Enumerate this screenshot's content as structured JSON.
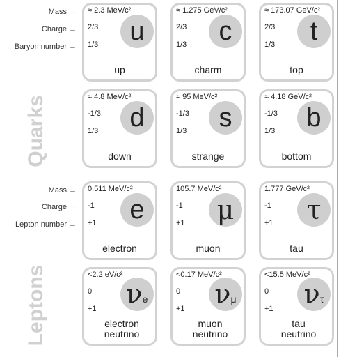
{
  "quark_row_labels": {
    "mass": "Mass",
    "charge": "Charge",
    "number": "Baryon number"
  },
  "lepton_row_labels": {
    "mass": "Mass",
    "charge": "Charge",
    "number": "Lepton number"
  },
  "arrow": "→",
  "groups": {
    "quarks": "Quarks",
    "leptons": "Leptons"
  },
  "quarks": [
    {
      "mass": "≈ 2.3 MeV/c²",
      "charge": "2/3",
      "number": "1/3",
      "symbol": "u",
      "name": "up"
    },
    {
      "mass": "≈ 1.275 GeV/c²",
      "charge": "2/3",
      "number": "1/3",
      "symbol": "c",
      "name": "charm"
    },
    {
      "mass": "≈ 173.07 GeV/c²",
      "charge": "2/3",
      "number": "1/3",
      "symbol": "t",
      "name": "top"
    },
    {
      "mass": "≈ 4.8 MeV/c²",
      "charge": "-1/3",
      "number": "1/3",
      "symbol": "d",
      "name": "down"
    },
    {
      "mass": "≈ 95 MeV/c²",
      "charge": "-1/3",
      "number": "1/3",
      "symbol": "s",
      "name": "strange"
    },
    {
      "mass": "≈ 4.18 GeV/c²",
      "charge": "-1/3",
      "number": "1/3",
      "symbol": "b",
      "name": "bottom"
    }
  ],
  "leptons": [
    {
      "mass": "0.511 MeV/c²",
      "charge": "-1",
      "number": "+1",
      "symbol": "e",
      "sub": "",
      "name": "electron"
    },
    {
      "mass": "105.7 MeV/c²",
      "charge": "-1",
      "number": "+1",
      "symbol": "μ",
      "sub": "",
      "name": "muon"
    },
    {
      "mass": "1.777 GeV/c²",
      "charge": "-1",
      "number": "+1",
      "symbol": "τ",
      "sub": "",
      "name": "tau"
    },
    {
      "mass": "<2.2 eV/c²",
      "charge": "0",
      "number": "+1",
      "symbol": "ν",
      "sub": "e",
      "name": "electron neutrino"
    },
    {
      "mass": "<0.17 MeV/c²",
      "charge": "0",
      "number": "+1",
      "symbol": "ν",
      "sub": "μ",
      "name": "muon neutrino"
    },
    {
      "mass": "<15.5 MeV/c²",
      "charge": "0",
      "number": "+1",
      "symbol": "ν",
      "sub": "τ",
      "name": "tau neutrino"
    }
  ]
}
